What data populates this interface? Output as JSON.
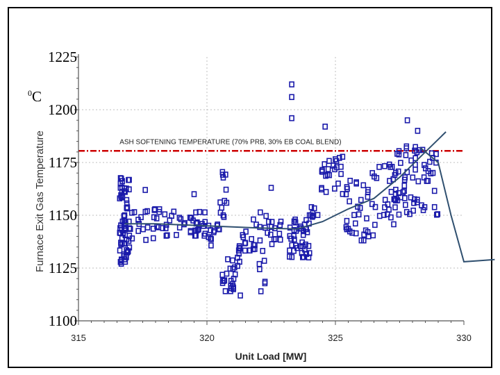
{
  "chart_data": {
    "type": "scatter",
    "xlabel": "Unit Load [MW]",
    "ylabel": "Furnace Exit Gas Temperature",
    "y_unit_label": "0C",
    "xlim": [
      315,
      330
    ],
    "ylim": [
      1100,
      1225
    ],
    "x_ticks": [
      "315",
      "320",
      "325",
      "330"
    ],
    "y_ticks": [
      "1225",
      "1200",
      "1175",
      "1150",
      "1125",
      "1100"
    ],
    "grid": true,
    "reference_line": {
      "label": "ASH SOFTENING TEMPERATURE (70% PRB, 30% EB COAL BLEND)",
      "y": 1180.5,
      "color": "#cc0000"
    },
    "trend_line": {
      "color": "#2f4f6f",
      "points": [
        [
          316.8,
          1146
        ],
        [
          318,
          1146
        ],
        [
          320,
          1145
        ],
        [
          322,
          1144
        ],
        [
          323.5,
          1143.5
        ],
        [
          324.5,
          1147
        ],
        [
          325.5,
          1153
        ],
        [
          326.5,
          1158
        ],
        [
          327.5,
          1168
        ],
        [
          328.5,
          1180
        ],
        [
          329.3,
          1189.5
        ]
      ]
    },
    "tail_line": {
      "color": "#2f4f6f",
      "points": [
        [
          328.3,
          1182
        ],
        [
          329.0,
          1175
        ],
        [
          329.5,
          1150
        ],
        [
          330.0,
          1128
        ],
        [
          330.6,
          1128.5
        ],
        [
          331.2,
          1129
        ]
      ]
    },
    "series": [
      {
        "marker": "open-square",
        "color": "#1a1aaa",
        "clusters": [
          {
            "x_range": [
              316.6,
              317.0
            ],
            "y_range": [
              1127,
              1168
            ],
            "n": 70
          },
          {
            "x_range": [
              316.9,
              319.2
            ],
            "y_range": [
              1138,
              1153
            ],
            "n": 40
          },
          {
            "x_range": [
              319.3,
              320.0
            ],
            "y_range": [
              1140,
              1152
            ],
            "n": 22
          },
          {
            "x_range": [
              320.0,
              320.5
            ],
            "y_range": [
              1133,
              1150
            ],
            "n": 12
          },
          {
            "x_range": [
              320.5,
              320.8
            ],
            "y_range": [
              1148,
              1171
            ],
            "n": 12
          },
          {
            "x_range": [
              320.6,
              321.3
            ],
            "y_range": [
              1114,
              1130
            ],
            "n": 24
          },
          {
            "x_range": [
              321.2,
              321.8
            ],
            "y_range": [
              1130,
              1143
            ],
            "n": 14
          },
          {
            "x_range": [
              321.8,
              322.4
            ],
            "y_range": [
              1115,
              1157
            ],
            "n": 16
          },
          {
            "x_range": [
              322.3,
              322.9
            ],
            "y_range": [
              1135,
              1150
            ],
            "n": 14
          },
          {
            "x_range": [
              323.2,
              324.0
            ],
            "y_range": [
              1130,
              1148
            ],
            "n": 40
          },
          {
            "x_range": [
              323.9,
              324.5
            ],
            "y_range": [
              1148,
              1160
            ],
            "n": 8
          },
          {
            "x_range": [
              324.4,
              325.3
            ],
            "y_range": [
              1160,
              1178
            ],
            "n": 24
          },
          {
            "x_range": [
              325.3,
              326.5
            ],
            "y_range": [
              1138,
              1168
            ],
            "n": 32
          },
          {
            "x_range": [
              326.4,
              327.5
            ],
            "y_range": [
              1145,
              1175
            ],
            "n": 30
          },
          {
            "x_range": [
              327.3,
              329.0
            ],
            "y_range": [
              1150,
              1183
            ],
            "n": 60
          }
        ],
        "points": [
          [
            323.3,
            1212
          ],
          [
            323.3,
            1206
          ],
          [
            323.3,
            1196
          ],
          [
            324.6,
            1192
          ],
          [
            327.8,
            1195
          ],
          [
            328.2,
            1190
          ],
          [
            321.1,
            1122
          ],
          [
            321.3,
            1112
          ],
          [
            322.1,
            1114
          ],
          [
            317.6,
            1162
          ],
          [
            319.5,
            1160
          ],
          [
            322.5,
            1163
          ]
        ]
      }
    ]
  }
}
